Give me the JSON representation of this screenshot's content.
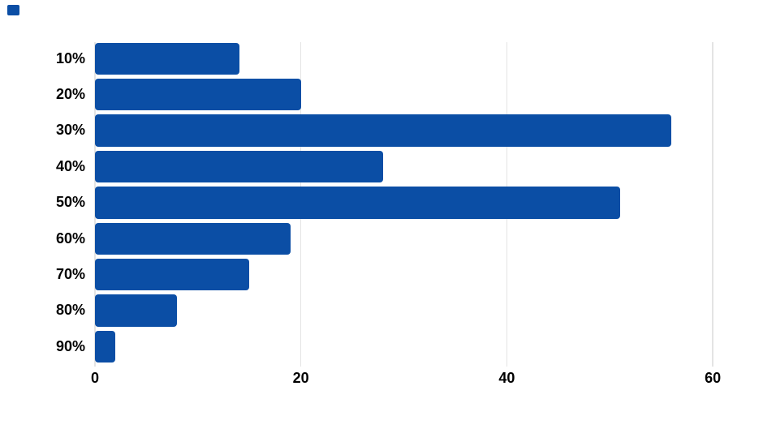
{
  "chart_data": {
    "type": "bar",
    "orientation": "horizontal",
    "title": "",
    "xlabel": "",
    "ylabel": "",
    "categories": [
      "10%",
      "20%",
      "30%",
      "40%",
      "50%",
      "60%",
      "70%",
      "80%",
      "90%"
    ],
    "values": [
      14,
      20,
      56,
      28,
      51,
      19,
      15,
      8,
      2
    ],
    "x_ticks": [
      0,
      20,
      40,
      60
    ],
    "xlim": [
      0,
      64
    ],
    "grid": true,
    "legend_position": "none",
    "bar_color": "#0b4ea5",
    "gridline_color": "#e4e4e4",
    "label_color": "#000000",
    "background_color": "#ffffff"
  },
  "legend_marker": {
    "color": "#0b4ea5"
  }
}
